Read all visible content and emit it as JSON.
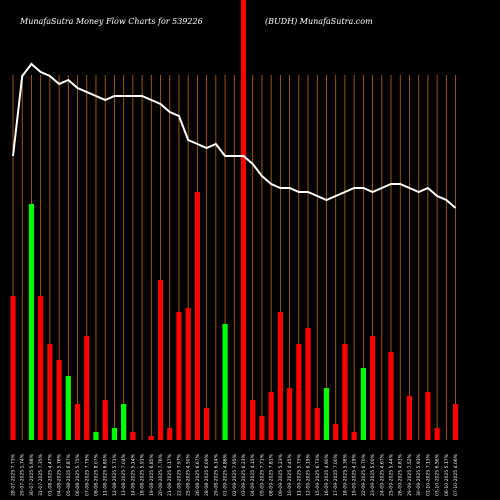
{
  "header": {
    "title": "MunafaSutra  Money Flow  Charts for 539226",
    "subtitle": "(BUDH)  MunafaSutra.com"
  },
  "chart_data": {
    "type": "bar",
    "title": "MunafaSutra  Money Flow  Charts for 539226",
    "subtitle": "(BUDH)  MunafaSutra.com",
    "xlabel": "",
    "ylabel": "",
    "grid": true,
    "legend": "none",
    "colors": {
      "up": "#00ff00",
      "down": "#ff0000",
      "price_line": "#ffffff",
      "grid": "#cc6600",
      "background": "#000000"
    },
    "value_units": "relative bar height, 0-100",
    "categories": [
      "28-07-2025 7.73%",
      "29-07-2025 1.74%",
      "30-07-2025 5.98%",
      "31-07-2025 7.35%",
      "01-08-2025 4.47%",
      "04-08-2025 5.76%",
      "05-08-2025 6.87%",
      "06-08-2025 5.75%",
      "07-08-2025 7.79%",
      "08-08-2025 8.07%",
      "11-08-2025 6.80%",
      "12-08-2025 5.71%",
      "13-08-2025 7.04%",
      "14-08-2025 5.14%",
      "18-08-2025 5.91%",
      "19-08-2025 6.85%",
      "20-08-2025 7.76%",
      "21-08-2025 6.17%",
      "22-08-2025 7.97%",
      "25-08-2025 4.50%",
      "26-08-2025 6.67%",
      "28-08-2025 6.09%",
      "29-08-2025 6.14%",
      "01-09-2025 4.86%",
      "02-09-2025 7.95%",
      "03-09-2025 6.23%",
      "04-09-2025 4.15%",
      "05-09-2025 7.71%",
      "08-09-2025 7.81%",
      "09-09-2025 5.23%",
      "10-09-2025 4.45%",
      "11-09-2025 5.73%",
      "12-09-2025 6.19%",
      "15-09-2025 6.73%",
      "16-09-2025 4.90%",
      "17-09-2025 7.00%",
      "18-09-2025 5.38%",
      "19-09-2025 4.29%",
      "22-09-2025 6.70%",
      "23-09-2025 5.00%",
      "24-09-2025 4.67%",
      "25-09-2025 5.44%",
      "26-09-2025 4.81%",
      "29-09-2025 7.52%",
      "30-09-2025 5.93%",
      "01-10-2025 7.13%",
      "03-10-2025 6.56%",
      "06-10-2025 5.17%",
      "07-10-2025 4.06%"
    ],
    "flow": [
      "down",
      "up",
      "up",
      "down",
      "down",
      "down",
      "up",
      "down",
      "down",
      "up",
      "down",
      "up",
      "up",
      "down",
      "down",
      "down",
      "down",
      "down",
      "down",
      "down",
      "down",
      "down",
      "up",
      "up",
      "up",
      "down",
      "down",
      "down",
      "down",
      "down",
      "down",
      "down",
      "down",
      "down",
      "up",
      "down",
      "down",
      "down",
      "up",
      "down",
      "up",
      "down",
      "down",
      "down",
      "down",
      "down",
      "down",
      "down",
      "down"
    ],
    "values": [
      36,
      0,
      59,
      36,
      24,
      20,
      16,
      9,
      26,
      2,
      10,
      3,
      9,
      2,
      0,
      1,
      40,
      3,
      32,
      33,
      62,
      8,
      0,
      29,
      0,
      110,
      10,
      6,
      12,
      32,
      13,
      24,
      28,
      8,
      13,
      4,
      24,
      2,
      18,
      26,
      0,
      22,
      0,
      11,
      0,
      12,
      3,
      0,
      9
    ],
    "price_line": [
      71,
      91,
      94,
      92,
      91,
      89,
      90,
      88,
      87,
      86,
      85,
      86,
      86,
      86,
      86,
      85,
      84,
      82,
      81,
      75,
      74,
      73,
      74,
      71,
      71,
      71,
      69,
      66,
      64,
      63,
      63,
      62,
      62,
      61,
      60,
      61,
      62,
      63,
      63,
      62,
      63,
      64,
      64,
      63,
      62,
      63,
      61,
      60,
      58
    ],
    "ylim": [
      0,
      110
    ]
  }
}
